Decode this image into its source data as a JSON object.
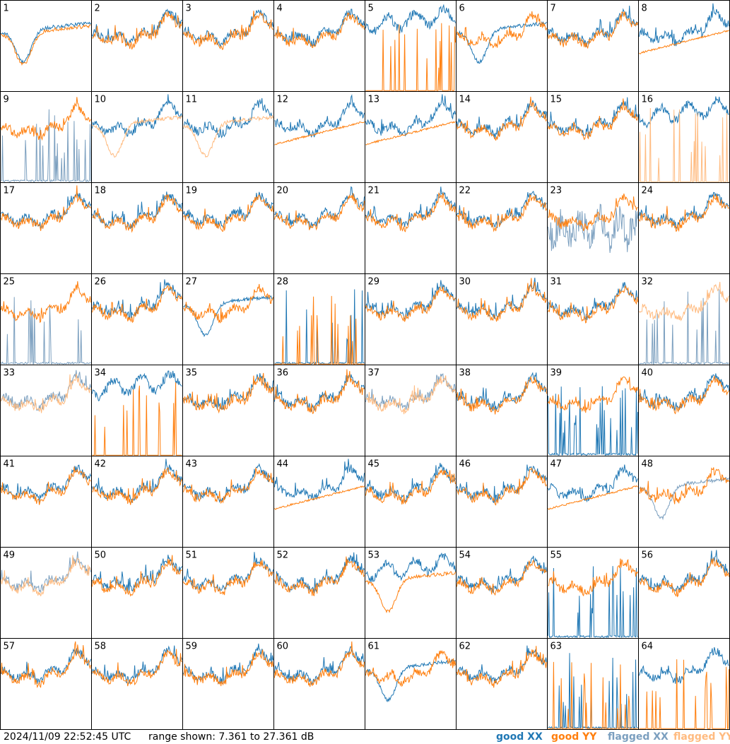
{
  "chart_data": {
    "type": "line",
    "layout": "8x8 small multiples",
    "footer": {
      "timestamp": "2024/11/09 22:52:45 UTC",
      "range_text": "range shown: 7.361 to 27.361 dB"
    },
    "ylim": [
      7.361,
      27.361
    ],
    "legend": [
      {
        "key": "good_xx",
        "label": "good XX",
        "color": "#1f77b4"
      },
      {
        "key": "good_yy",
        "label": "good YY",
        "color": "#ff7f0e"
      },
      {
        "key": "flagged_xx",
        "label": "flagged XX",
        "color": "#7b9fbf"
      },
      {
        "key": "flagged_yy",
        "label": "flagged YY",
        "color": "#ffbb80"
      }
    ],
    "legend_placement": "bottom-right",
    "panels": [
      {
        "label": "1",
        "xx": "good",
        "yy": "good",
        "xx_shape": "dipped",
        "yy_shape": "dipped"
      },
      {
        "label": "2",
        "xx": "good",
        "yy": "good",
        "xx_shape": "typical",
        "yy_shape": "typical"
      },
      {
        "label": "3",
        "xx": "good",
        "yy": "good",
        "xx_shape": "typical",
        "yy_shape": "typical"
      },
      {
        "label": "4",
        "xx": "good",
        "yy": "good",
        "xx_shape": "typical",
        "yy_shape": "typical"
      },
      {
        "label": "5",
        "xx": "good",
        "yy": "good",
        "xx_shape": "high",
        "yy_shape": "spiky"
      },
      {
        "label": "6",
        "xx": "good",
        "yy": "good",
        "xx_shape": "dipped",
        "yy_shape": "typical"
      },
      {
        "label": "7",
        "xx": "good",
        "yy": "good",
        "xx_shape": "typical",
        "yy_shape": "typical"
      },
      {
        "label": "8",
        "xx": "good",
        "yy": "good",
        "xx_shape": "typical",
        "yy_shape": "smooth"
      },
      {
        "label": "9",
        "xx": "flagged",
        "yy": "good",
        "xx_shape": "spiky",
        "yy_shape": "typical"
      },
      {
        "label": "10",
        "xx": "good",
        "yy": "flagged",
        "xx_shape": "typical",
        "yy_shape": "dipped"
      },
      {
        "label": "11",
        "xx": "good",
        "yy": "flagged",
        "xx_shape": "typical",
        "yy_shape": "dipped"
      },
      {
        "label": "12",
        "xx": "good",
        "yy": "good",
        "xx_shape": "typical",
        "yy_shape": "smooth"
      },
      {
        "label": "13",
        "xx": "good",
        "yy": "good",
        "xx_shape": "typical",
        "yy_shape": "smooth"
      },
      {
        "label": "14",
        "xx": "good",
        "yy": "good",
        "xx_shape": "typical",
        "yy_shape": "typical"
      },
      {
        "label": "15",
        "xx": "good",
        "yy": "good",
        "xx_shape": "typical",
        "yy_shape": "typical"
      },
      {
        "label": "16",
        "xx": "good",
        "yy": "flagged",
        "xx_shape": "high",
        "yy_shape": "spiky"
      },
      {
        "label": "17",
        "xx": "good",
        "yy": "good",
        "xx_shape": "typical",
        "yy_shape": "typical"
      },
      {
        "label": "18",
        "xx": "good",
        "yy": "good",
        "xx_shape": "typical",
        "yy_shape": "typical"
      },
      {
        "label": "19",
        "xx": "good",
        "yy": "good",
        "xx_shape": "typical",
        "yy_shape": "typical"
      },
      {
        "label": "20",
        "xx": "good",
        "yy": "good",
        "xx_shape": "typical",
        "yy_shape": "typical"
      },
      {
        "label": "21",
        "xx": "good",
        "yy": "good",
        "xx_shape": "typical",
        "yy_shape": "typical"
      },
      {
        "label": "22",
        "xx": "good",
        "yy": "good",
        "xx_shape": "typical",
        "yy_shape": "typical"
      },
      {
        "label": "23",
        "xx": "flagged",
        "yy": "good",
        "xx_shape": "noisy",
        "yy_shape": "typical"
      },
      {
        "label": "24",
        "xx": "good",
        "yy": "good",
        "xx_shape": "typical",
        "yy_shape": "typical"
      },
      {
        "label": "25",
        "xx": "flagged",
        "yy": "good",
        "xx_shape": "spiky",
        "yy_shape": "typical"
      },
      {
        "label": "26",
        "xx": "good",
        "yy": "good",
        "xx_shape": "typical",
        "yy_shape": "typical"
      },
      {
        "label": "27",
        "xx": "good",
        "yy": "good",
        "xx_shape": "dipped",
        "yy_shape": "typical"
      },
      {
        "label": "28",
        "xx": "good",
        "yy": "good",
        "xx_shape": "spiky",
        "yy_shape": "spiky"
      },
      {
        "label": "29",
        "xx": "good",
        "yy": "good",
        "xx_shape": "typical",
        "yy_shape": "typical"
      },
      {
        "label": "30",
        "xx": "good",
        "yy": "good",
        "xx_shape": "typical",
        "yy_shape": "typical"
      },
      {
        "label": "31",
        "xx": "good",
        "yy": "good",
        "xx_shape": "typical",
        "yy_shape": "typical"
      },
      {
        "label": "32",
        "xx": "flagged",
        "yy": "flagged",
        "xx_shape": "spiky",
        "yy_shape": "typical"
      },
      {
        "label": "33",
        "xx": "flagged",
        "yy": "flagged",
        "xx_shape": "typical",
        "yy_shape": "typical"
      },
      {
        "label": "34",
        "xx": "good",
        "yy": "good",
        "xx_shape": "high",
        "yy_shape": "spiky"
      },
      {
        "label": "35",
        "xx": "good",
        "yy": "good",
        "xx_shape": "typical",
        "yy_shape": "typical"
      },
      {
        "label": "36",
        "xx": "good",
        "yy": "good",
        "xx_shape": "typical",
        "yy_shape": "typical"
      },
      {
        "label": "37",
        "xx": "flagged",
        "yy": "flagged",
        "xx_shape": "typical",
        "yy_shape": "typical"
      },
      {
        "label": "38",
        "xx": "good",
        "yy": "good",
        "xx_shape": "typical",
        "yy_shape": "typical"
      },
      {
        "label": "39",
        "xx": "good",
        "yy": "good",
        "xx_shape": "spiky",
        "yy_shape": "typical"
      },
      {
        "label": "40",
        "xx": "good",
        "yy": "good",
        "xx_shape": "typical",
        "yy_shape": "typical"
      },
      {
        "label": "41",
        "xx": "good",
        "yy": "good",
        "xx_shape": "typical",
        "yy_shape": "typical"
      },
      {
        "label": "42",
        "xx": "good",
        "yy": "good",
        "xx_shape": "typical",
        "yy_shape": "typical"
      },
      {
        "label": "43",
        "xx": "good",
        "yy": "good",
        "xx_shape": "typical",
        "yy_shape": "typical"
      },
      {
        "label": "44",
        "xx": "good",
        "yy": "good",
        "xx_shape": "typical",
        "yy_shape": "smooth"
      },
      {
        "label": "45",
        "xx": "good",
        "yy": "good",
        "xx_shape": "typical",
        "yy_shape": "typical"
      },
      {
        "label": "46",
        "xx": "good",
        "yy": "good",
        "xx_shape": "typical",
        "yy_shape": "typical"
      },
      {
        "label": "47",
        "xx": "good",
        "yy": "good",
        "xx_shape": "typical",
        "yy_shape": "smooth"
      },
      {
        "label": "48",
        "xx": "flagged",
        "yy": "good",
        "xx_shape": "dipped",
        "yy_shape": "typical"
      },
      {
        "label": "49",
        "xx": "flagged",
        "yy": "flagged",
        "xx_shape": "typical",
        "yy_shape": "typical"
      },
      {
        "label": "50",
        "xx": "good",
        "yy": "good",
        "xx_shape": "typical",
        "yy_shape": "typical"
      },
      {
        "label": "51",
        "xx": "good",
        "yy": "good",
        "xx_shape": "typical",
        "yy_shape": "typical"
      },
      {
        "label": "52",
        "xx": "good",
        "yy": "good",
        "xx_shape": "typical",
        "yy_shape": "typical"
      },
      {
        "label": "53",
        "xx": "good",
        "yy": "good",
        "xx_shape": "high",
        "yy_shape": "dipped"
      },
      {
        "label": "54",
        "xx": "good",
        "yy": "good",
        "xx_shape": "typical",
        "yy_shape": "typical"
      },
      {
        "label": "55",
        "xx": "good",
        "yy": "good",
        "xx_shape": "spiky",
        "yy_shape": "typical"
      },
      {
        "label": "56",
        "xx": "good",
        "yy": "good",
        "xx_shape": "typical",
        "yy_shape": "typical"
      },
      {
        "label": "57",
        "xx": "good",
        "yy": "good",
        "xx_shape": "typical",
        "yy_shape": "typical"
      },
      {
        "label": "58",
        "xx": "good",
        "yy": "good",
        "xx_shape": "typical",
        "yy_shape": "typical"
      },
      {
        "label": "59",
        "xx": "good",
        "yy": "good",
        "xx_shape": "typical",
        "yy_shape": "typical"
      },
      {
        "label": "60",
        "xx": "good",
        "yy": "good",
        "xx_shape": "typical",
        "yy_shape": "typical"
      },
      {
        "label": "61",
        "xx": "good",
        "yy": "good",
        "xx_shape": "dipped",
        "yy_shape": "typical"
      },
      {
        "label": "62",
        "xx": "good",
        "yy": "good",
        "xx_shape": "typical",
        "yy_shape": "typical"
      },
      {
        "label": "63",
        "xx": "good",
        "yy": "good",
        "xx_shape": "spiky",
        "yy_shape": "spiky"
      },
      {
        "label": "64",
        "xx": "good",
        "yy": "good",
        "xx_shape": "typical",
        "yy_shape": "spiky"
      }
    ]
  }
}
